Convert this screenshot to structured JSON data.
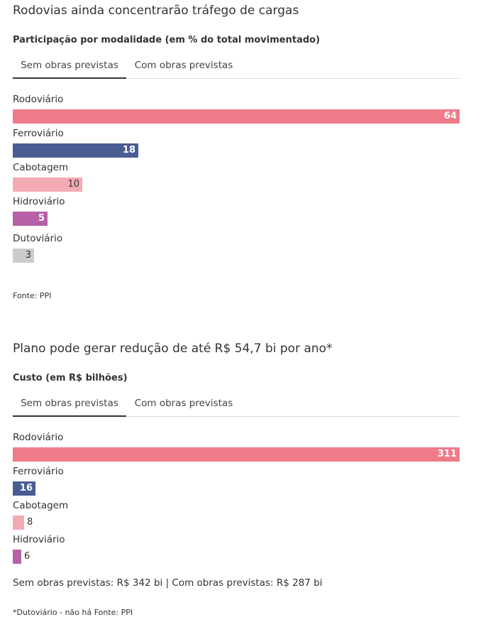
{
  "colors": {
    "rodoviario": "#ef7b88",
    "ferroviario": "#4b5c93",
    "cabotagem": "#f4aab3",
    "hidroviario": "#b560a8",
    "dutoviario": "#cccccc",
    "tab_underline": "#333333"
  },
  "chart1": {
    "title": "Rodovias ainda concentrarão tráfego de cargas",
    "subtitle": "Participação por modalidade (em % do total movimentado)",
    "tabs": [
      {
        "label": "Sem obras previstas",
        "active": true
      },
      {
        "label": "Com obras previstas",
        "active": false
      }
    ],
    "source": "Fonte: PPI"
  },
  "chart2": {
    "title": "Plano pode gerar redução de até R$ 54,7 bi por ano*",
    "subtitle": "Custo (em R$ bilhões)",
    "tabs": [
      {
        "label": "Sem obras previstas",
        "active": true
      },
      {
        "label": "Com obras previstas",
        "active": false
      }
    ],
    "note": "Sem obras previstas: R$ 342 bi | Com obras previstas: R$ 287 bi",
    "source": "*Dutoviário - não há Fonte: PPI"
  },
  "chart_data": [
    {
      "type": "bar",
      "orientation": "horizontal",
      "title": "Rodovias ainda concentrarão tráfego de cargas",
      "subtitle": "Participação por modalidade (em % do total movimentado)",
      "selected_tab": "Sem obras previstas",
      "categories": [
        "Rodoviário",
        "Ferroviário",
        "Cabotagem",
        "Hidroviário",
        "Dutoviário"
      ],
      "values": [
        64,
        18,
        10,
        5,
        3
      ],
      "colors": [
        "#ef7b88",
        "#4b5c93",
        "#f4aab3",
        "#b560a8",
        "#cccccc"
      ],
      "xlim": [
        0,
        64
      ]
    },
    {
      "type": "bar",
      "orientation": "horizontal",
      "title": "Plano pode gerar redução de até R$ 54,7 bi por ano*",
      "subtitle": "Custo (em R$ bilhões)",
      "selected_tab": "Sem obras previstas",
      "categories": [
        "Rodoviário",
        "Ferroviário",
        "Cabotagem",
        "Hidroviário"
      ],
      "values": [
        311,
        16,
        8,
        6
      ],
      "colors": [
        "#ef7b88",
        "#4b5c93",
        "#f4aab3",
        "#b560a8"
      ],
      "xlim": [
        0,
        311
      ]
    }
  ]
}
